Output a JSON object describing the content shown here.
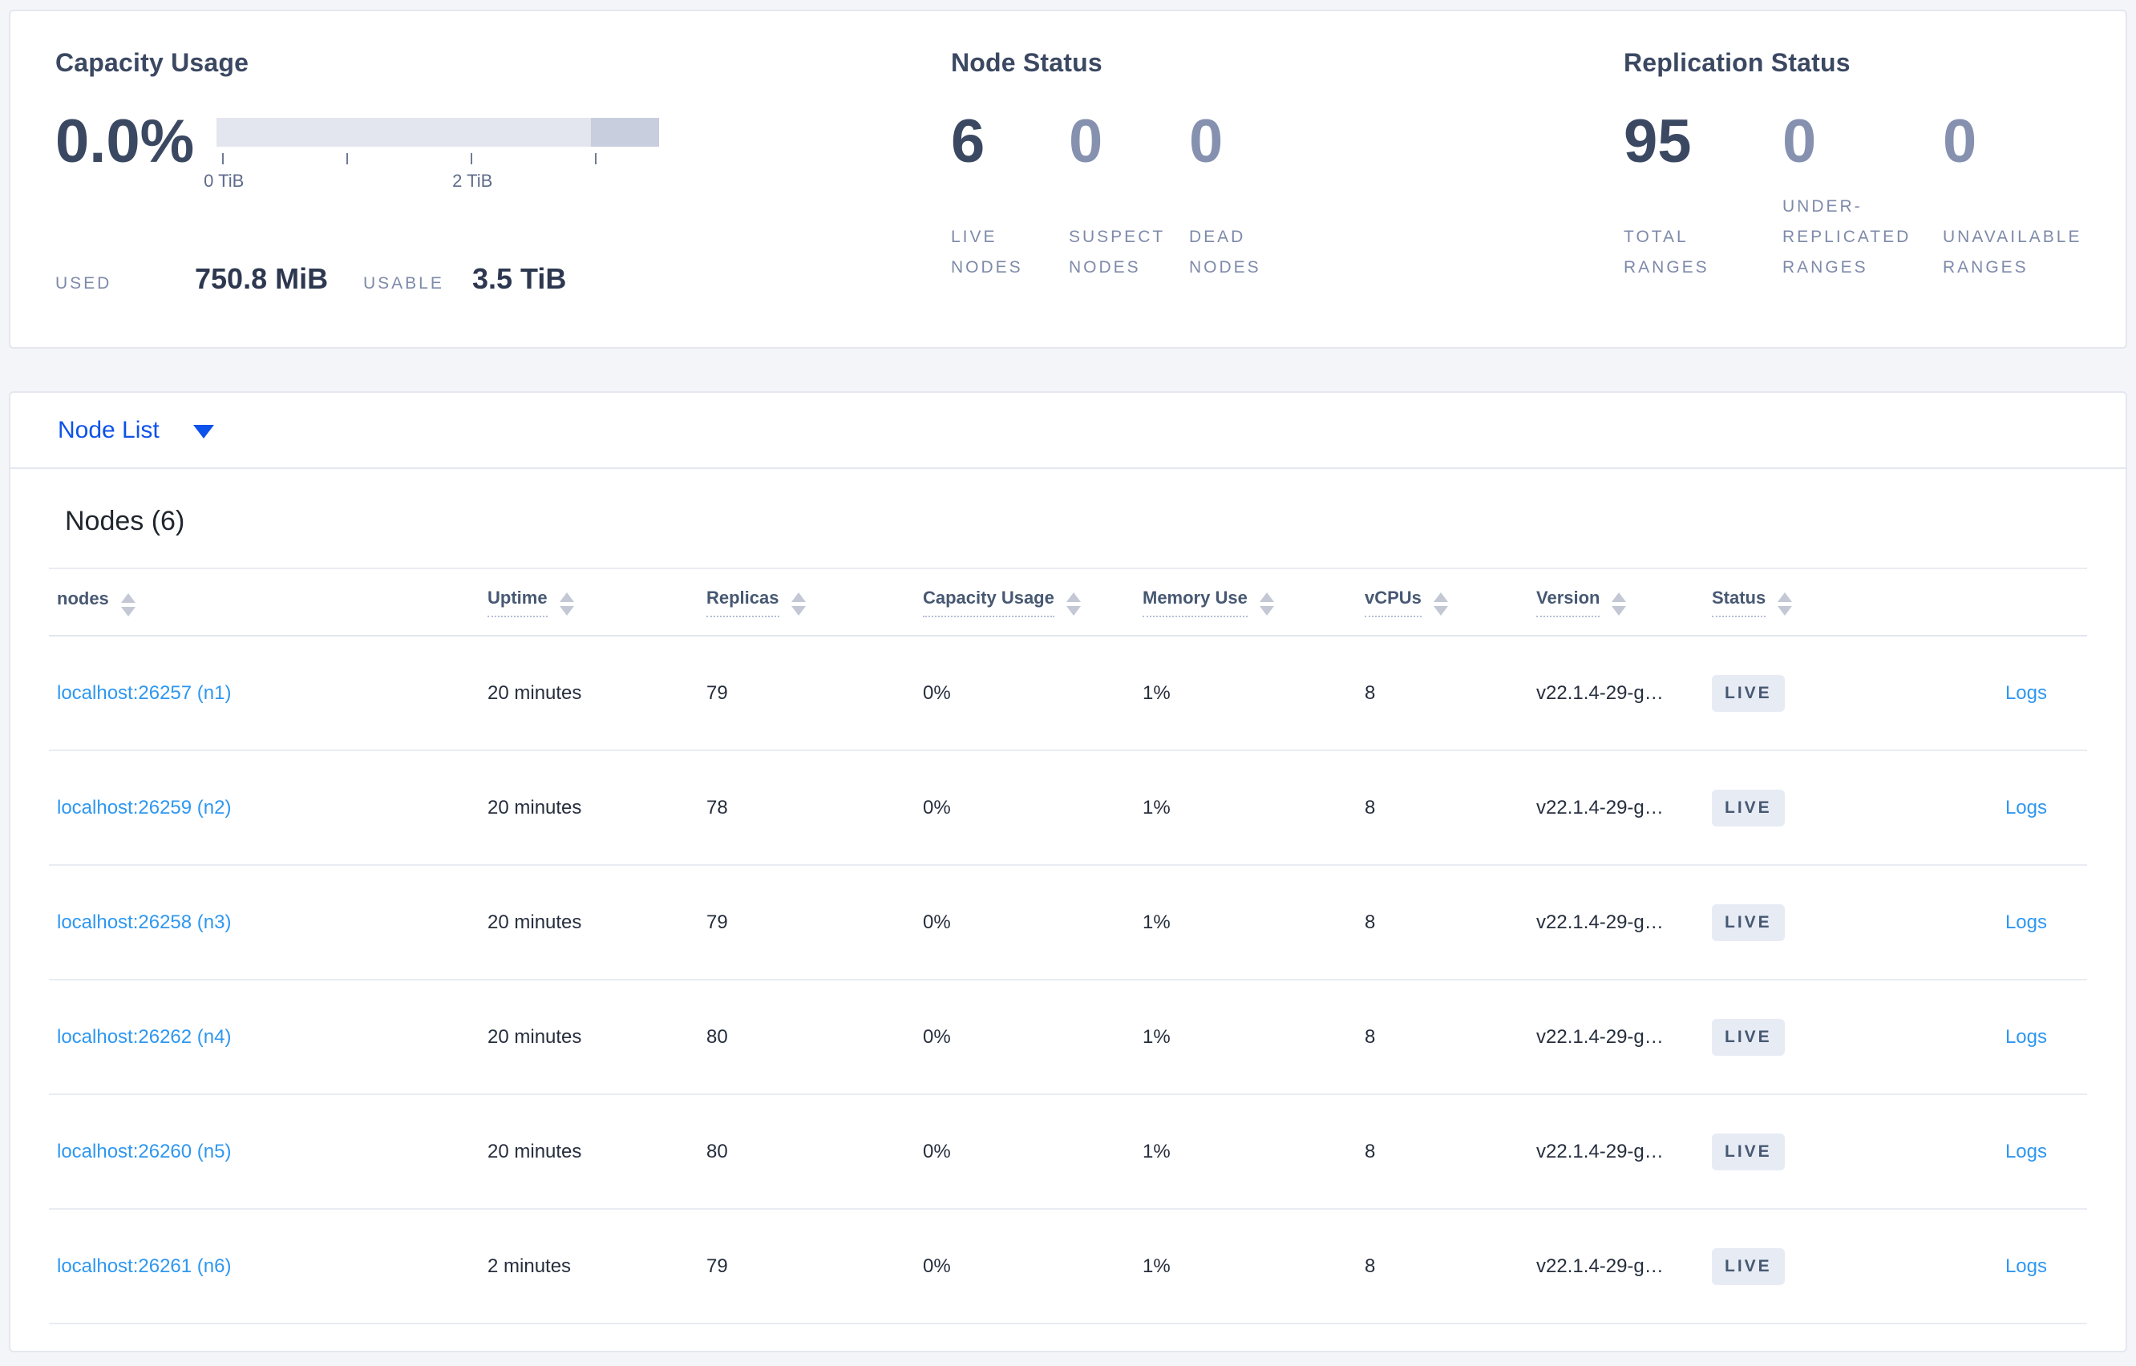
{
  "summary": {
    "capacity": {
      "title": "Capacity Usage",
      "percent": "0.0%",
      "axis_ticks": [
        "0 TiB",
        "2 TiB"
      ],
      "used_label": "USED",
      "used_value": "750.8 MiB",
      "usable_label": "USABLE",
      "usable_value": "3.5 TiB"
    },
    "node_status": {
      "title": "Node Status",
      "stats": [
        {
          "value": "6",
          "label": "LIVE NODES"
        },
        {
          "value": "0",
          "label": "SUSPECT NODES"
        },
        {
          "value": "0",
          "label": "DEAD NODES"
        }
      ]
    },
    "replication": {
      "title": "Replication Status",
      "stats": [
        {
          "value": "95",
          "label": "TOTAL RANGES"
        },
        {
          "value": "0",
          "label": "UNDER-REPLICATED RANGES"
        },
        {
          "value": "0",
          "label": "UNAVAILABLE RANGES"
        }
      ]
    }
  },
  "node_list": {
    "dropdown_label": "Node List"
  },
  "nodes_table": {
    "title": "Nodes (6)",
    "columns": [
      "nodes",
      "Uptime",
      "Replicas",
      "Capacity Usage",
      "Memory Use",
      "vCPUs",
      "Version",
      "Status"
    ],
    "rows": [
      {
        "node": "localhost:26257 (n1)",
        "uptime": "20 minutes",
        "replicas": "79",
        "capacity_usage": "0%",
        "memory_use": "1%",
        "vcpus": "8",
        "version": "v22.1.4-29-g…",
        "status": "LIVE",
        "logs": "Logs"
      },
      {
        "node": "localhost:26259 (n2)",
        "uptime": "20 minutes",
        "replicas": "78",
        "capacity_usage": "0%",
        "memory_use": "1%",
        "vcpus": "8",
        "version": "v22.1.4-29-g…",
        "status": "LIVE",
        "logs": "Logs"
      },
      {
        "node": "localhost:26258 (n3)",
        "uptime": "20 minutes",
        "replicas": "79",
        "capacity_usage": "0%",
        "memory_use": "1%",
        "vcpus": "8",
        "version": "v22.1.4-29-g…",
        "status": "LIVE",
        "logs": "Logs"
      },
      {
        "node": "localhost:26262 (n4)",
        "uptime": "20 minutes",
        "replicas": "80",
        "capacity_usage": "0%",
        "memory_use": "1%",
        "vcpus": "8",
        "version": "v22.1.4-29-g…",
        "status": "LIVE",
        "logs": "Logs"
      },
      {
        "node": "localhost:26260 (n5)",
        "uptime": "20 minutes",
        "replicas": "80",
        "capacity_usage": "0%",
        "memory_use": "1%",
        "vcpus": "8",
        "version": "v22.1.4-29-g…",
        "status": "LIVE",
        "logs": "Logs"
      },
      {
        "node": "localhost:26261 (n6)",
        "uptime": "2 minutes",
        "replicas": "79",
        "capacity_usage": "0%",
        "memory_use": "1%",
        "vcpus": "8",
        "version": "v22.1.4-29-g…",
        "status": "LIVE",
        "logs": "Logs"
      }
    ]
  },
  "colors": {
    "dropdown_blue": "#0d52ea",
    "link_blue": "#2e97f0",
    "badge_bg": "#e7ebf4",
    "badge_text": "#475872",
    "bar_track": "#e3e6ef",
    "bar_reserved_segment": "#c9cede",
    "stat_emphasis": "#3b4862",
    "stat_muted": "#8691b0"
  }
}
